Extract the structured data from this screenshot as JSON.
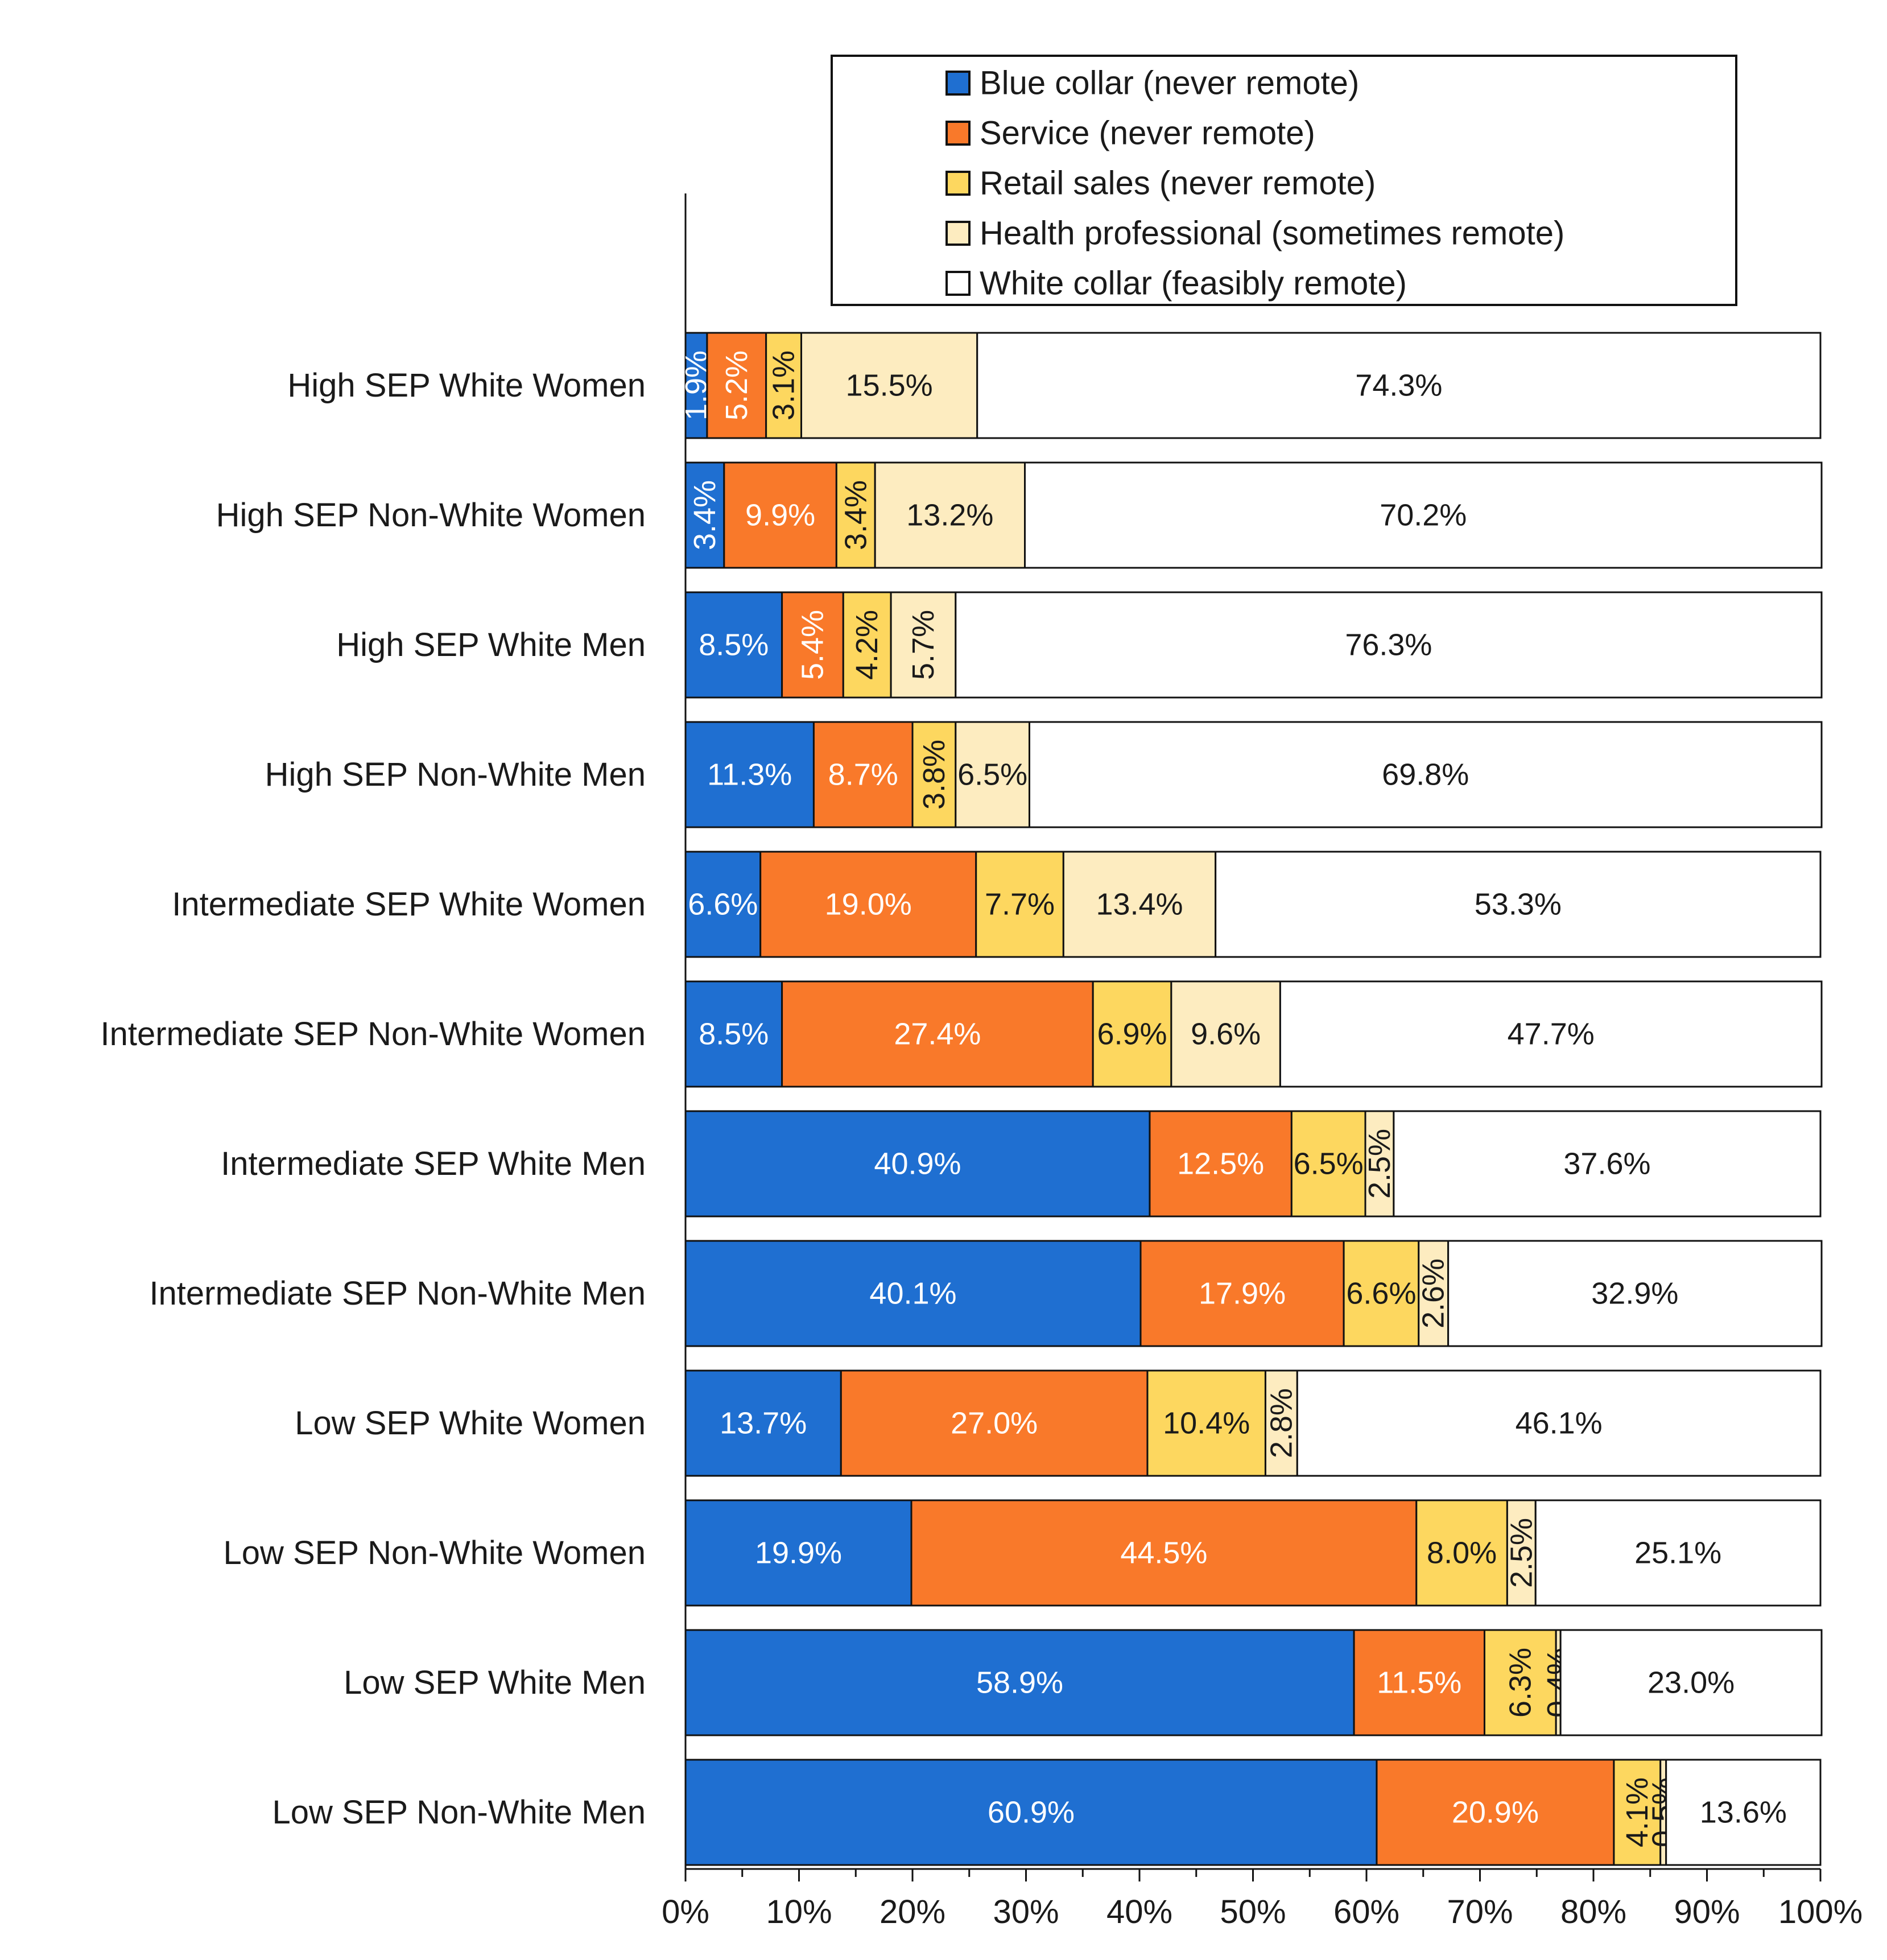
{
  "chart_data": {
    "type": "bar",
    "orientation": "horizontal",
    "stacked": true,
    "title": "",
    "xlabel": "",
    "ylabel": "",
    "xlim": [
      0,
      100
    ],
    "x_ticks": [
      "0%",
      "10%",
      "20%",
      "30%",
      "40%",
      "50%",
      "60%",
      "70%",
      "80%",
      "90%",
      "100%"
    ],
    "legend_position": "top-right",
    "categories": [
      "High SEP White Women",
      "High SEP Non-White Women",
      "High SEP White Men",
      "High SEP Non-White Men",
      "Intermediate SEP White Women",
      "Intermediate SEP Non-White Women",
      "Intermediate SEP White Men",
      "Intermediate SEP Non-White Men",
      "Low SEP White Women",
      "Low SEP Non-White Women",
      "Low SEP White Men",
      "Low SEP Non-White Men"
    ],
    "series": [
      {
        "name": "Blue collar (never remote)",
        "color": "#1f6fd1",
        "text_color": "#ffffff",
        "values": [
          1.9,
          3.4,
          8.5,
          11.3,
          6.6,
          8.5,
          40.9,
          40.1,
          13.7,
          19.9,
          58.9,
          60.9
        ],
        "labels": [
          "1.9%",
          "3.4%",
          "8.5%",
          "11.3%",
          "6.6%",
          "8.5%",
          "40.9%",
          "40.1%",
          "13.7%",
          "19.9%",
          "58.9%",
          "60.9%"
        ],
        "vertical": [
          true,
          true,
          false,
          false,
          false,
          false,
          false,
          false,
          false,
          false,
          false,
          false
        ]
      },
      {
        "name": "Service (never remote)",
        "color": "#f9792a",
        "text_color": "#ffffff",
        "values": [
          5.2,
          9.9,
          5.4,
          8.7,
          19.0,
          27.4,
          12.5,
          17.9,
          27.0,
          44.5,
          11.5,
          20.9
        ],
        "labels": [
          "5.2%",
          "9.9%",
          "5.4%",
          "8.7%",
          "19.0%",
          "27.4%",
          "12.5%",
          "17.9%",
          "27.0%",
          "44.5%",
          "11.5%",
          "20.9%"
        ],
        "vertical": [
          true,
          false,
          true,
          false,
          false,
          false,
          false,
          false,
          false,
          false,
          false,
          false
        ]
      },
      {
        "name": "Retail sales (never remote)",
        "color": "#fdd75f",
        "text_color": "#1a1a1a",
        "values": [
          3.1,
          3.4,
          4.2,
          3.8,
          7.7,
          6.9,
          6.5,
          6.6,
          10.4,
          8.0,
          6.3,
          4.1
        ],
        "labels": [
          "3.1%",
          "3.4%",
          "4.2%",
          "3.8%",
          "7.7%",
          "6.9%",
          "6.5%",
          "6.6%",
          "10.4%",
          "8.0%",
          "6.3%",
          "4.1%"
        ],
        "vertical": [
          true,
          true,
          true,
          true,
          false,
          false,
          false,
          false,
          false,
          false,
          true,
          true
        ]
      },
      {
        "name": "Health professional (sometimes remote)",
        "color": "#fdecc0",
        "text_color": "#1a1a1a",
        "values": [
          15.5,
          13.2,
          5.7,
          6.5,
          13.4,
          9.6,
          2.5,
          2.6,
          2.8,
          2.5,
          0.4,
          0.5
        ],
        "labels": [
          "15.5%",
          "13.2%",
          "5.7%",
          "6.5%",
          "13.4%",
          "9.6%",
          "2.5%",
          "2.6%",
          "2.8%",
          "2.5%",
          "0.4%",
          "0.5%"
        ],
        "vertical": [
          false,
          false,
          true,
          false,
          false,
          false,
          true,
          true,
          true,
          true,
          true,
          true
        ]
      },
      {
        "name": "White collar (feasibly remote)",
        "color": "#ffffff",
        "text_color": "#1a1a1a",
        "values": [
          74.3,
          70.2,
          76.3,
          69.8,
          53.3,
          47.7,
          37.6,
          32.9,
          46.1,
          25.1,
          23.0,
          13.6
        ],
        "labels": [
          "74.3%",
          "70.2%",
          "76.3%",
          "69.8%",
          "53.3%",
          "47.7%",
          "37.6%",
          "32.9%",
          "46.1%",
          "25.1%",
          "23.0%",
          "13.6%"
        ],
        "vertical": [
          false,
          false,
          false,
          false,
          false,
          false,
          false,
          false,
          false,
          false,
          false,
          false
        ]
      }
    ]
  }
}
